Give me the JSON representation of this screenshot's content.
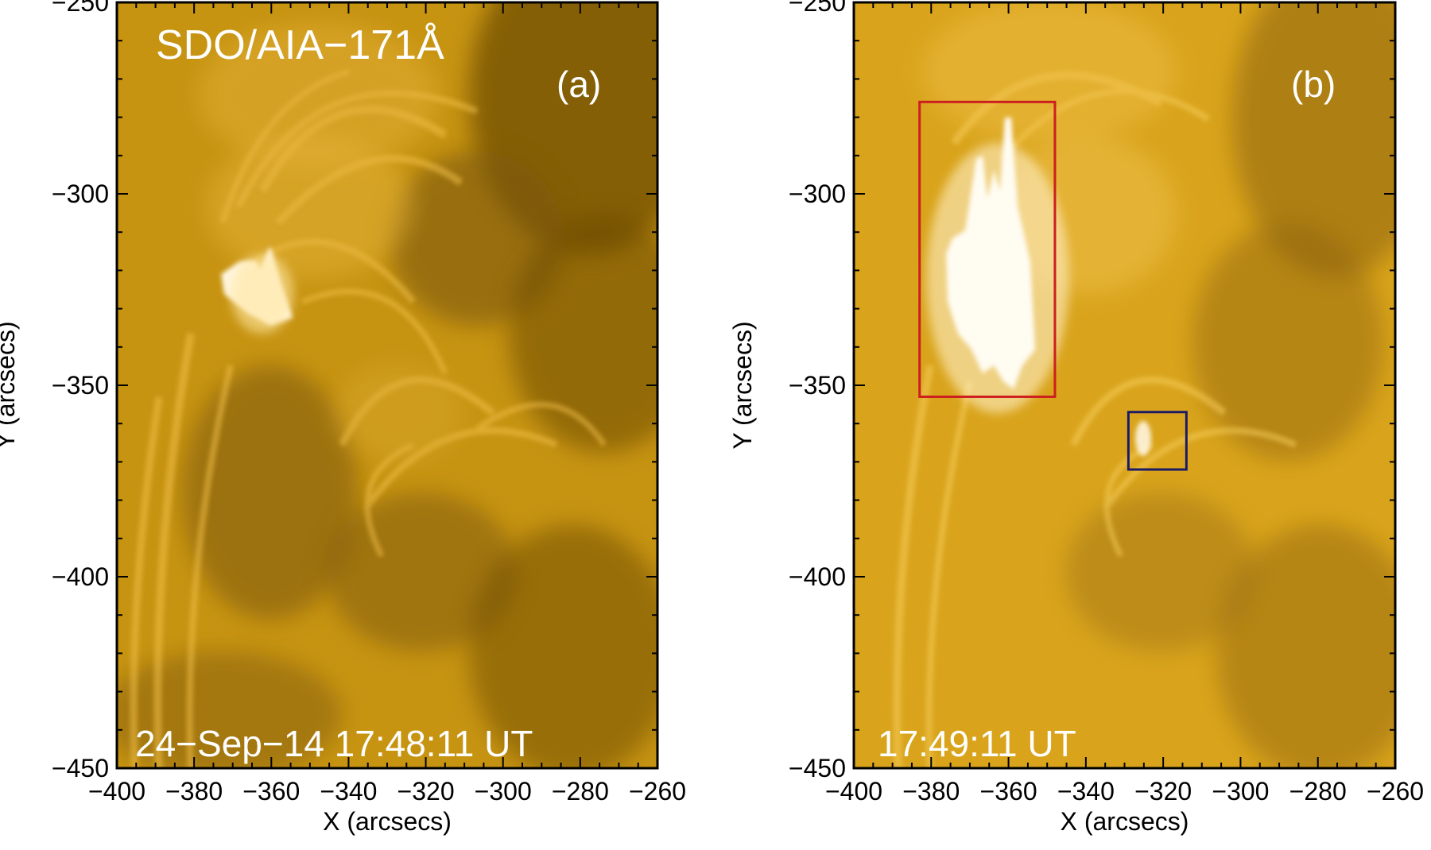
{
  "figure": {
    "panels": [
      {
        "id": "a",
        "instrument_label": "SDO/AIA−171Å",
        "panel_label": "(a)",
        "timestamp": "24−Sep−14 17:48:11 UT",
        "x_axis": {
          "title": "X (arcsecs)",
          "range": [
            -400,
            -260
          ],
          "ticks": [
            -400,
            -380,
            -360,
            -340,
            -320,
            -300,
            -280,
            -260
          ],
          "tick_labels": [
            "−400",
            "−380",
            "−360",
            "−340",
            "−320",
            "−300",
            "−280",
            "−260"
          ]
        },
        "y_axis": {
          "title": "Y (arcsecs)",
          "range": [
            -450,
            -250
          ],
          "ticks": [
            -250,
            -300,
            -350,
            -400,
            -450
          ],
          "tick_labels": [
            "−250",
            "−300",
            "−350",
            "−400",
            "−450"
          ]
        },
        "boxes": []
      },
      {
        "id": "b",
        "instrument_label": "",
        "panel_label": "(b)",
        "timestamp": "17:49:11 UT",
        "x_axis": {
          "title": "X (arcsecs)",
          "range": [
            -400,
            -260
          ],
          "ticks": [
            -400,
            -380,
            -360,
            -340,
            -320,
            -300,
            -280,
            -260
          ],
          "tick_labels": [
            "−400",
            "−380",
            "−360",
            "−340",
            "−320",
            "−300",
            "−280",
            "−260"
          ]
        },
        "y_axis": {
          "title": "Y (arcsecs)",
          "range": [
            -450,
            -250
          ],
          "ticks": [
            -250,
            -300,
            -350,
            -400,
            -450
          ],
          "tick_labels": [
            "−250",
            "−300",
            "−350",
            "−400",
            "−450"
          ]
        },
        "boxes": [
          {
            "name": "red-box",
            "color": "#cc1f1f",
            "x": [
              -383,
              -348
            ],
            "y": [
              -276,
              -353
            ]
          },
          {
            "name": "blue-box",
            "color": "#1a1a66",
            "x": [
              -329,
              -314
            ],
            "y": [
              -357,
              -372
            ]
          }
        ]
      }
    ]
  }
}
